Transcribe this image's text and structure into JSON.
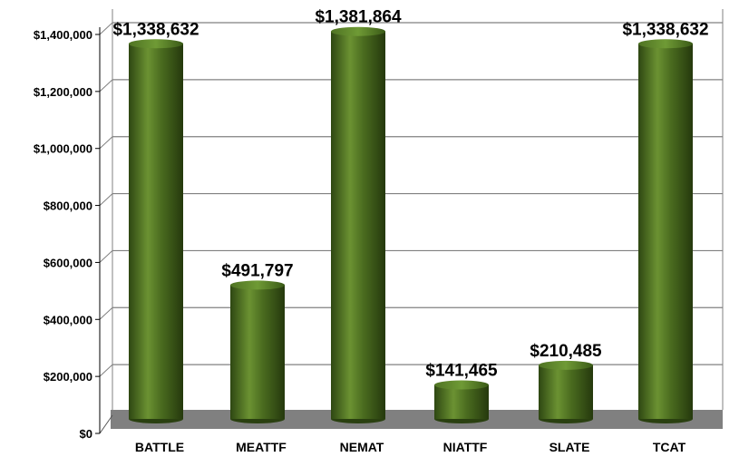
{
  "chart_data": {
    "type": "bar",
    "bar_shape": "cylinder",
    "categories": [
      "BATTLE",
      "MEATTF",
      "NEMAT",
      "NIATTF",
      "SLATE",
      "TCAT"
    ],
    "values": [
      1338632,
      491797,
      1381864,
      141465,
      210485,
      1338632
    ],
    "data_labels": [
      "$1,338,632",
      "$491,797",
      "$1,381,864",
      "$141,465",
      "$210,485",
      "$1,338,632"
    ],
    "ylim": [
      0,
      1400000
    ],
    "yticks": [
      0,
      200000,
      400000,
      600000,
      800000,
      1000000,
      1200000,
      1400000
    ],
    "ytick_labels": [
      "$0",
      "$200,000",
      "$400,000",
      "$600,000",
      "$800,000",
      "$1,000,000",
      "$1,200,000",
      "$1,400,000"
    ],
    "grid": true,
    "colors": {
      "bar": "#4a6b1f",
      "bar_highlight": "#7aa23a",
      "bar_shadow": "#2a4010",
      "floor": "#808080",
      "grid": "#808080",
      "background": "#ffffff"
    }
  }
}
